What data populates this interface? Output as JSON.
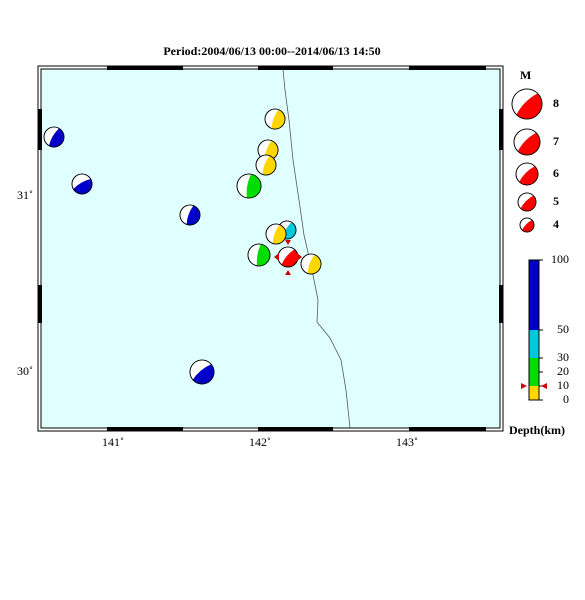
{
  "map": {
    "title": "Period:2004/06/13 00:00--2014/06/13 14:50",
    "lon_labels": [
      "141˚",
      "142˚",
      "143˚"
    ],
    "lat_labels": [
      "31˚",
      "30˚"
    ]
  },
  "magnitude_legend": {
    "title": "M",
    "labels": [
      "8",
      "7",
      "6",
      "5",
      "4"
    ]
  },
  "depth_legend": {
    "title": "Depth(km)",
    "labels": [
      "100",
      "50",
      "30",
      "20",
      "10",
      "0"
    ]
  }
}
